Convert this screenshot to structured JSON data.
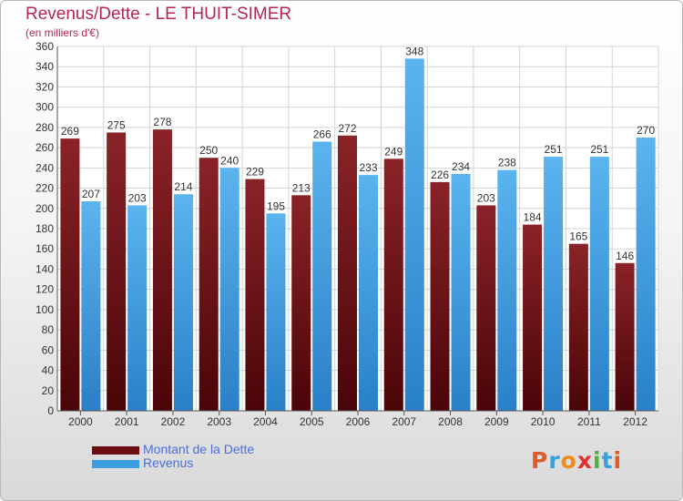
{
  "title": "Revenus/Dette - LE THUIT-SIMER",
  "subtitle": "(en milliers d'€)",
  "colors": {
    "title": "#b5245a",
    "dette": "#7a1418",
    "revenus": "#3a9ee0",
    "legend_text": "#4a6ee0"
  },
  "logo": {
    "text": "Proxiti",
    "letter_colors": [
      "#e05a28",
      "#3aa0d8",
      "#f08a18",
      "#e03030",
      "#50b040",
      "#3aa0d8",
      "#e05a28"
    ]
  },
  "legend": [
    {
      "label": "Montant de la Dette",
      "color": "#6a0e12"
    },
    {
      "label": "Revenus",
      "color": "#3a9ee0"
    }
  ],
  "chart_data": {
    "type": "bar",
    "title": "Revenus/Dette - LE THUIT-SIMER",
    "subtitle": "(en milliers d'€)",
    "categories": [
      "2000",
      "2001",
      "2002",
      "2003",
      "2004",
      "2005",
      "2006",
      "2007",
      "2008",
      "2009",
      "2010",
      "2011",
      "2012"
    ],
    "series": [
      {
        "name": "Montant de la Dette",
        "values": [
          269,
          275,
          278,
          250,
          229,
          213,
          272,
          249,
          226,
          203,
          184,
          165,
          146
        ]
      },
      {
        "name": "Revenus",
        "values": [
          207,
          203,
          214,
          240,
          195,
          266,
          233,
          348,
          234,
          238,
          251,
          251,
          270
        ]
      }
    ],
    "ylim": [
      0,
      360
    ],
    "ytick_step": 20,
    "grid": true,
    "legend_position": "bottom-left"
  }
}
